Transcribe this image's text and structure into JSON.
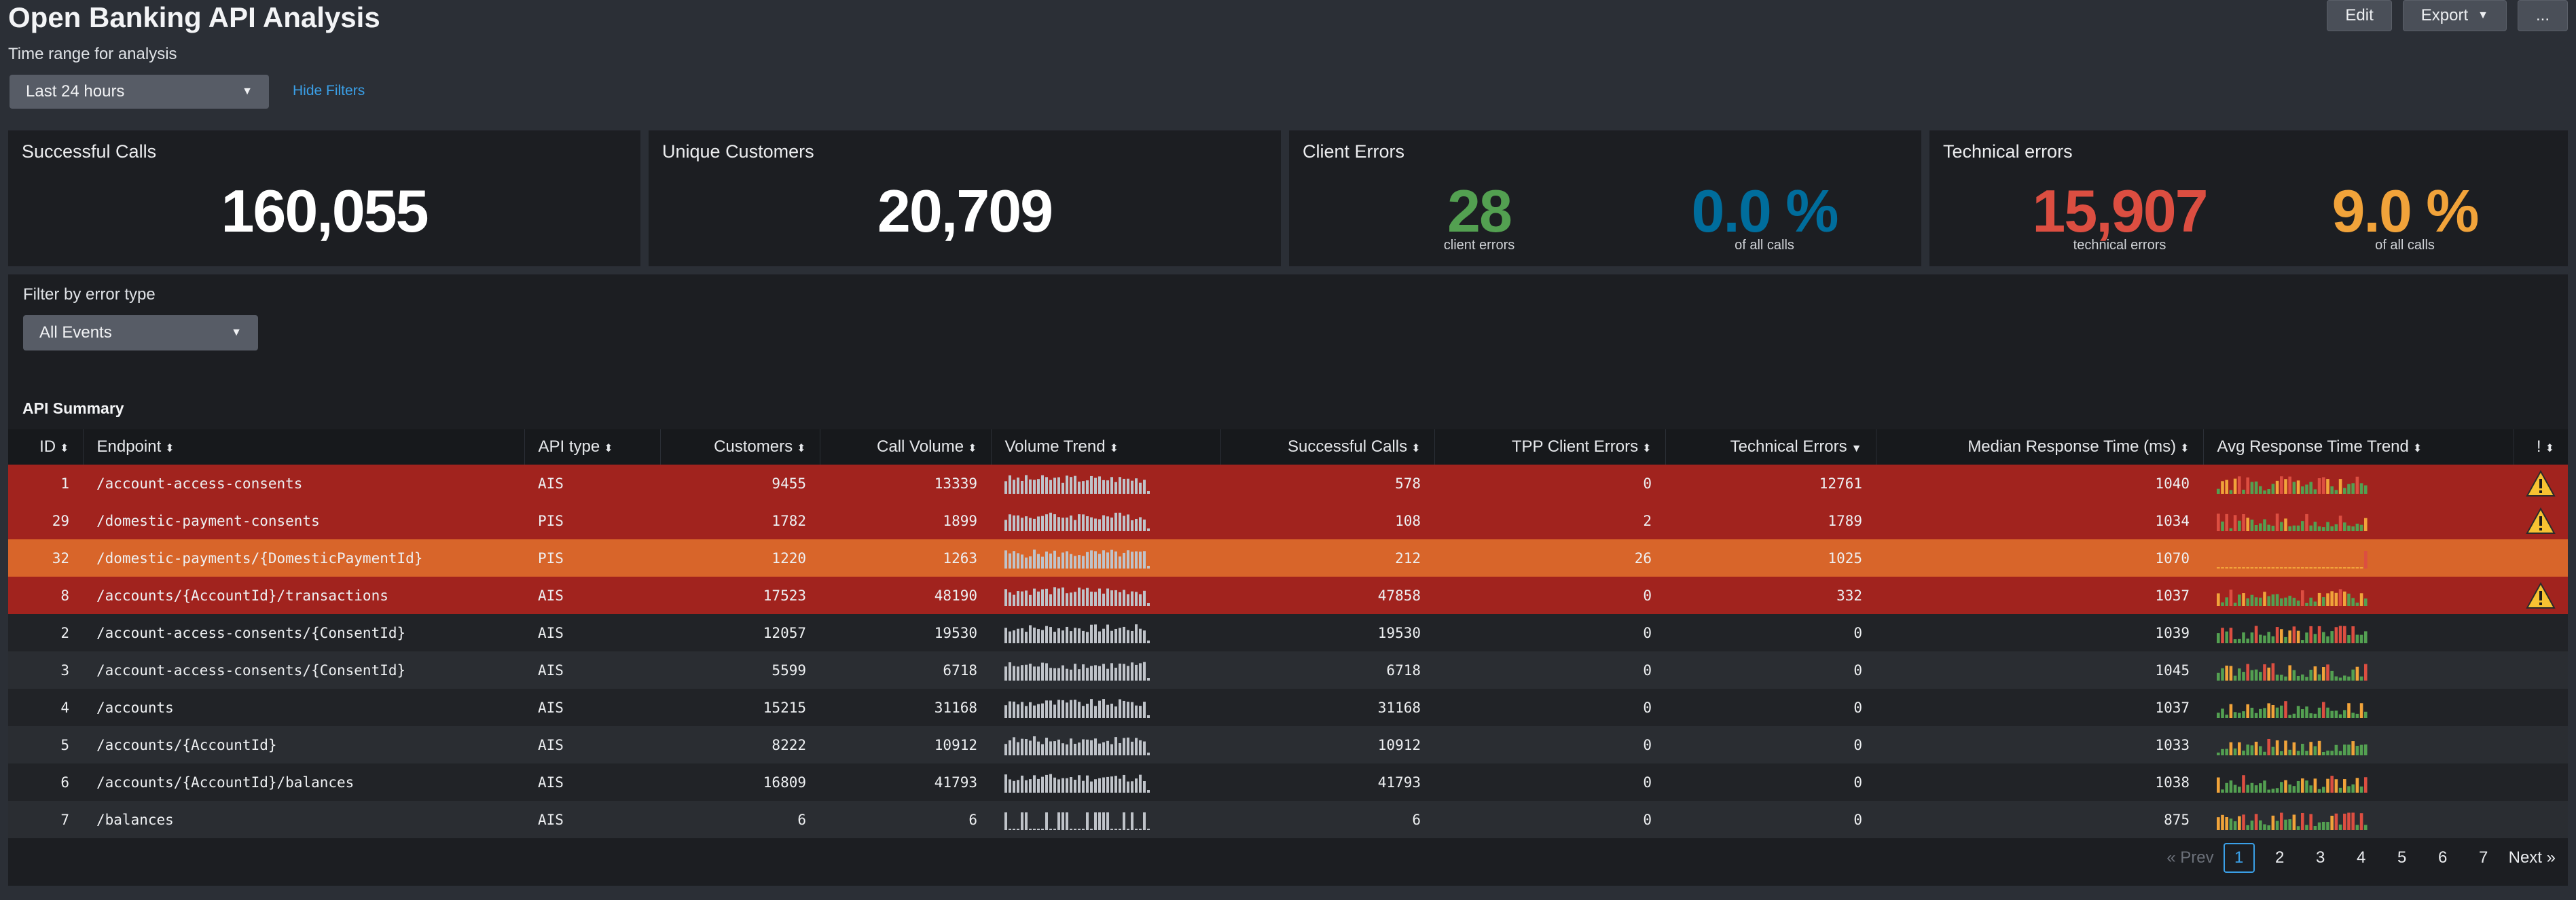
{
  "header": {
    "title": "Open Banking API Analysis",
    "edit_label": "Edit",
    "export_label": "Export",
    "more_label": "..."
  },
  "filters": {
    "time_label": "Time range for analysis",
    "time_value": "Last 24 hours",
    "hide_filters": "Hide Filters",
    "error_label": "Filter by error type",
    "error_value": "All Events"
  },
  "kpis": {
    "successful": {
      "title": "Successful Calls",
      "value": "160,055"
    },
    "customers": {
      "title": "Unique Customers",
      "value": "20,709"
    },
    "client_errors": {
      "title": "Client Errors",
      "value": "28",
      "value_sub": "client errors",
      "pct": "0.0 %",
      "pct_sub": "of all calls"
    },
    "tech_errors": {
      "title": "Technical errors",
      "value": "15,907",
      "value_sub": "technical errors",
      "pct": "9.0 %",
      "pct_sub": "of all calls"
    }
  },
  "colors": {
    "green": "#53a051",
    "blue": "#006d9c",
    "red": "#dc4e41",
    "orange": "#f1a33a"
  },
  "table": {
    "title": "API Summary",
    "columns": [
      "ID",
      "Endpoint",
      "API type",
      "Customers",
      "Call Volume",
      "Volume Trend",
      "Successful Calls",
      "TPP Client Errors",
      "Technical Errors",
      "Median Response Time (ms)",
      "Avg Response Time Trend",
      "!"
    ],
    "rows": [
      {
        "id": "1",
        "endpoint": "/account-access-consents",
        "type": "AIS",
        "customers": "9455",
        "volume": "13339",
        "successful": "578",
        "client": "0",
        "technical": "12761",
        "median": "1040",
        "status": "red",
        "warn": true
      },
      {
        "id": "29",
        "endpoint": "/domestic-payment-consents",
        "type": "PIS",
        "customers": "1782",
        "volume": "1899",
        "successful": "108",
        "client": "2",
        "technical": "1789",
        "median": "1034",
        "status": "red",
        "warn": true
      },
      {
        "id": "32",
        "endpoint": "/domestic-payments/{DomesticPaymentId}",
        "type": "PIS",
        "customers": "1220",
        "volume": "1263",
        "successful": "212",
        "client": "26",
        "technical": "1025",
        "median": "1070",
        "status": "orange",
        "warn": false
      },
      {
        "id": "8",
        "endpoint": "/accounts/{AccountId}/transactions",
        "type": "AIS",
        "customers": "17523",
        "volume": "48190",
        "successful": "47858",
        "client": "0",
        "technical": "332",
        "median": "1037",
        "status": "red",
        "warn": true
      },
      {
        "id": "2",
        "endpoint": "/account-access-consents/{ConsentId}",
        "type": "AIS",
        "customers": "12057",
        "volume": "19530",
        "successful": "19530",
        "client": "0",
        "technical": "0",
        "median": "1039",
        "status": "dark1",
        "warn": false
      },
      {
        "id": "3",
        "endpoint": "/account-access-consents/{ConsentId}",
        "type": "AIS",
        "customers": "5599",
        "volume": "6718",
        "successful": "6718",
        "client": "0",
        "technical": "0",
        "median": "1045",
        "status": "dark2",
        "warn": false
      },
      {
        "id": "4",
        "endpoint": "/accounts",
        "type": "AIS",
        "customers": "15215",
        "volume": "31168",
        "successful": "31168",
        "client": "0",
        "technical": "0",
        "median": "1037",
        "status": "dark1",
        "warn": false
      },
      {
        "id": "5",
        "endpoint": "/accounts/{AccountId}",
        "type": "AIS",
        "customers": "8222",
        "volume": "10912",
        "successful": "10912",
        "client": "0",
        "technical": "0",
        "median": "1033",
        "status": "dark2",
        "warn": false
      },
      {
        "id": "6",
        "endpoint": "/accounts/{AccountId}/balances",
        "type": "AIS",
        "customers": "16809",
        "volume": "41793",
        "successful": "41793",
        "client": "0",
        "technical": "0",
        "median": "1038",
        "status": "dark1",
        "warn": false
      },
      {
        "id": "7",
        "endpoint": "/balances",
        "type": "AIS",
        "customers": "6",
        "volume": "6",
        "successful": "6",
        "client": "0",
        "technical": "0",
        "median": "875",
        "status": "dark2",
        "warn": false
      }
    ]
  },
  "pager": {
    "prev": "« Prev",
    "pages": [
      "1",
      "2",
      "3",
      "4",
      "5",
      "6",
      "7"
    ],
    "next": "Next »"
  }
}
